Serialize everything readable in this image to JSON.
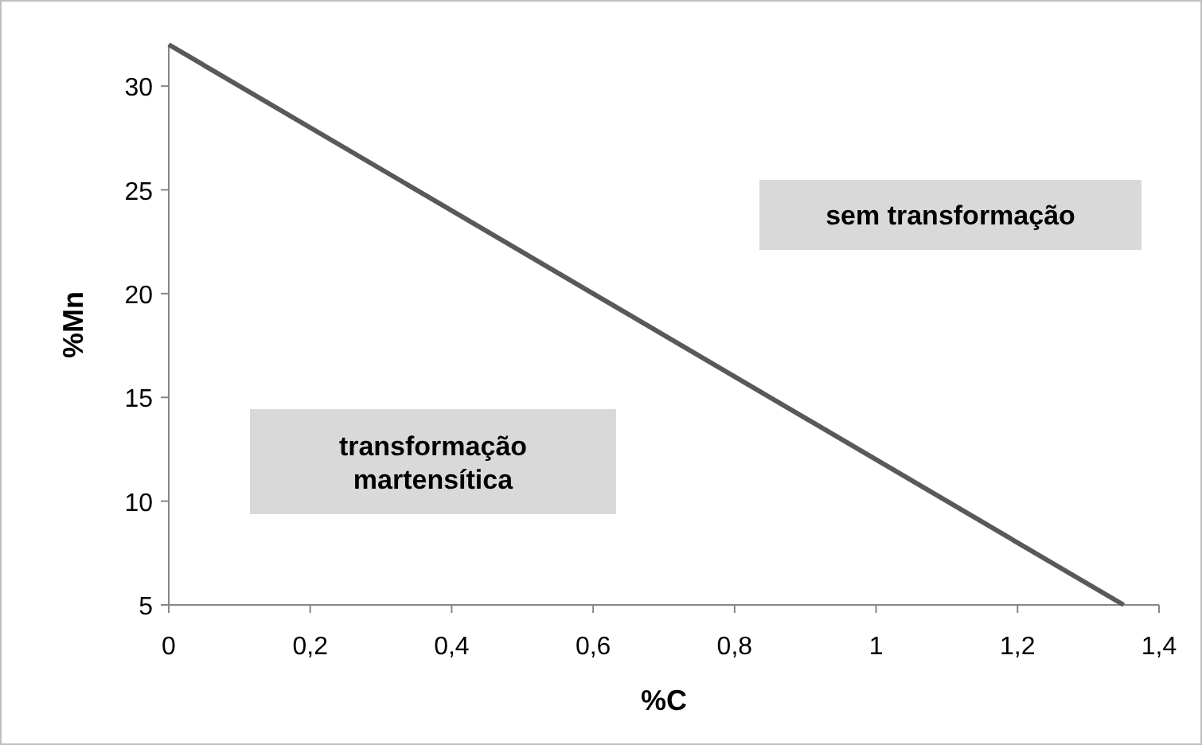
{
  "chart_data": {
    "type": "line",
    "xlabel": "%C",
    "ylabel": "%Mn",
    "series": [
      {
        "color": "#595959",
        "x": [
          0,
          1.35
        ],
        "values": [
          32,
          5
        ]
      }
    ],
    "xlim": [
      0,
      1.4
    ],
    "xticks": [
      {
        "value": 0,
        "label": "0"
      },
      {
        "value": 0.2,
        "label": "0,2"
      },
      {
        "value": 0.4,
        "label": "0,4"
      },
      {
        "value": 0.6,
        "label": "0,6"
      },
      {
        "value": 0.8,
        "label": "0,8"
      },
      {
        "value": 1,
        "label": "1"
      },
      {
        "value": 1.2,
        "label": "1,2"
      },
      {
        "value": 1.4,
        "label": "1,4"
      }
    ],
    "ylim": [
      5,
      32
    ],
    "yticks": [
      5,
      10,
      15,
      20,
      25,
      30
    ],
    "annotations": [
      "sem transformação",
      "transformação\nmartensítica"
    ],
    "grid": false,
    "marker": "none",
    "line_style": "solid"
  }
}
